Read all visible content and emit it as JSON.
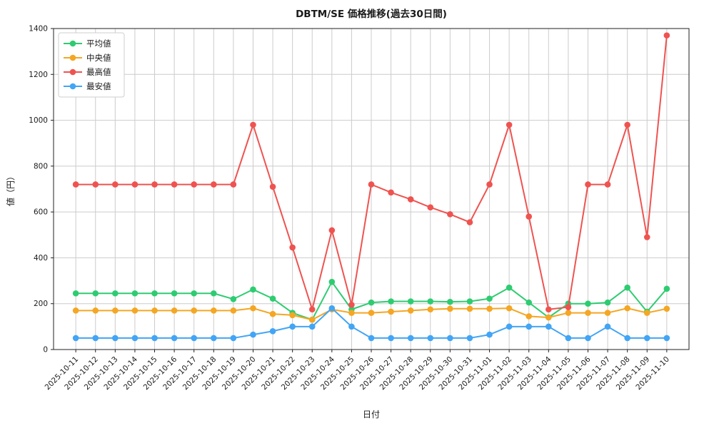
{
  "figure": {
    "background": "#ffffff",
    "grid_color": "#cccccc",
    "spine_color": "#222222"
  },
  "chart_data": {
    "type": "line",
    "title": "DBTM/SE 価格推移(過去30日間)",
    "xlabel": "日付",
    "ylabel": "値（円）",
    "ylim": [
      0,
      1400
    ],
    "yticks": [
      0,
      200,
      400,
      600,
      800,
      1000,
      1200,
      1400
    ],
    "grid": true,
    "legend_position": "upper left",
    "categories": [
      "2025-10-11",
      "2025-10-12",
      "2025-10-13",
      "2025-10-14",
      "2025-10-15",
      "2025-10-16",
      "2025-10-17",
      "2025-10-18",
      "2025-10-19",
      "2025-10-20",
      "2025-10-21",
      "2025-10-22",
      "2025-10-23",
      "2025-10-24",
      "2025-10-25",
      "2025-10-26",
      "2025-10-27",
      "2025-10-28",
      "2025-10-29",
      "2025-10-30",
      "2025-10-31",
      "2025-11-01",
      "2025-11-02",
      "2025-11-03",
      "2025-11-04",
      "2025-11-05",
      "2025-11-06",
      "2025-11-07",
      "2025-11-08",
      "2025-11-09",
      "2025-11-10"
    ],
    "series": [
      {
        "key": "average",
        "name": "平均値",
        "color": "#2ecc71",
        "values": [
          245,
          245,
          245,
          245,
          245,
          245,
          245,
          245,
          220,
          262,
          222,
          160,
          130,
          295,
          175,
          205,
          210,
          210,
          210,
          208,
          210,
          222,
          270,
          205,
          140,
          200,
          200,
          205,
          270,
          165,
          265
        ]
      },
      {
        "key": "median",
        "name": "中央値",
        "color": "#f5a623",
        "values": [
          170,
          170,
          170,
          170,
          170,
          170,
          170,
          170,
          170,
          180,
          155,
          150,
          130,
          175,
          160,
          160,
          165,
          170,
          175,
          178,
          178,
          178,
          180,
          145,
          140,
          160,
          160,
          160,
          180,
          160,
          178
        ]
      },
      {
        "key": "max",
        "name": "最高値",
        "color": "#ef5350",
        "values": [
          720,
          720,
          720,
          720,
          720,
          720,
          720,
          720,
          720,
          980,
          710,
          445,
          175,
          520,
          195,
          720,
          685,
          655,
          620,
          590,
          555,
          720,
          980,
          580,
          175,
          185,
          720,
          720,
          980,
          490,
          1370
        ]
      },
      {
        "key": "min",
        "name": "最安値",
        "color": "#42a5f5",
        "values": [
          50,
          50,
          50,
          50,
          50,
          50,
          50,
          50,
          50,
          65,
          80,
          100,
          100,
          180,
          100,
          50,
          50,
          50,
          50,
          50,
          50,
          65,
          100,
          100,
          100,
          50,
          50,
          100,
          50,
          50,
          50
        ]
      }
    ]
  }
}
